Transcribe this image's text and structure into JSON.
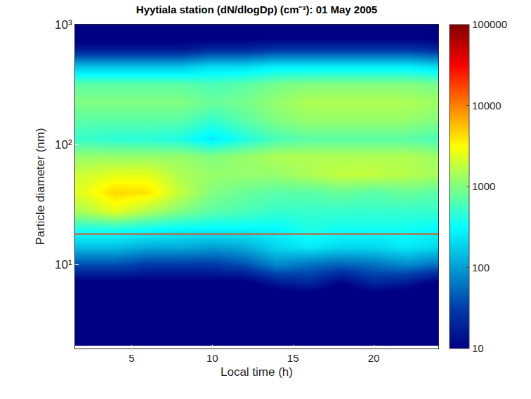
{
  "chart_data": {
    "type": "heatmap",
    "title": "Hyytiala station (dN/dlogDp) (cm⁻³): 01 May 2005",
    "x_label": "Local time (h)",
    "y_label": "Particle diameter (nm)",
    "log": "y",
    "grid": false,
    "color": "jet",
    "x": [
      2,
      4,
      6,
      8,
      10,
      12,
      14,
      16,
      18,
      20,
      22,
      24
    ],
    "y": [
      2.5,
      3.5,
      5,
      7,
      10,
      14,
      20,
      28,
      40,
      56,
      80,
      112,
      160,
      224,
      320,
      450,
      630,
      900
    ],
    "cells": [
      [
        5,
        5,
        5,
        5,
        5,
        5,
        5,
        5,
        5,
        5,
        5,
        5
      ],
      [
        5,
        5,
        5,
        5,
        5,
        5,
        5,
        5,
        5,
        5,
        5,
        5
      ],
      [
        5,
        5,
        5,
        5,
        5,
        5,
        5,
        5,
        5,
        5,
        5,
        5
      ],
      [
        8,
        8,
        8,
        8,
        8,
        8,
        15,
        20,
        10,
        20,
        15,
        8
      ],
      [
        40,
        40,
        30,
        30,
        30,
        40,
        80,
        60,
        50,
        60,
        80,
        60
      ],
      [
        150,
        150,
        120,
        120,
        100,
        120,
        200,
        250,
        200,
        200,
        250,
        200
      ],
      [
        400,
        400,
        350,
        300,
        300,
        300,
        300,
        400,
        350,
        350,
        350,
        300
      ],
      [
        1500,
        2500,
        1500,
        1000,
        700,
        600,
        500,
        500,
        500,
        500,
        500,
        500
      ],
      [
        2500,
        4500,
        4000,
        1800,
        1000,
        800,
        700,
        700,
        800,
        700,
        800,
        700
      ],
      [
        2000,
        2500,
        2500,
        1500,
        1200,
        1200,
        1200,
        1500,
        1800,
        1800,
        1600,
        1400
      ],
      [
        1200,
        1200,
        1200,
        1200,
        1000,
        1200,
        1500,
        1500,
        1500,
        1500,
        1500,
        1300
      ],
      [
        500,
        450,
        450,
        400,
        250,
        400,
        600,
        700,
        700,
        700,
        700,
        600
      ],
      [
        700,
        700,
        700,
        700,
        500,
        700,
        1000,
        1200,
        1200,
        1200,
        1200,
        1000
      ],
      [
        1000,
        1000,
        1000,
        1000,
        800,
        900,
        1200,
        1500,
        1500,
        1500,
        1500,
        1300
      ],
      [
        700,
        700,
        700,
        700,
        600,
        700,
        900,
        1000,
        1000,
        1000,
        1000,
        900
      ],
      [
        150,
        150,
        150,
        150,
        200,
        200,
        250,
        250,
        250,
        250,
        250,
        200
      ],
      [
        15,
        15,
        15,
        15,
        20,
        20,
        25,
        25,
        25,
        25,
        25,
        20
      ],
      [
        5,
        5,
        5,
        5,
        5,
        5,
        5,
        5,
        5,
        5,
        5,
        5
      ]
    ],
    "xlim": [
      1.5,
      24
    ],
    "ylim": [
      2,
      1000
    ],
    "xticks": [
      5,
      10,
      15,
      20
    ],
    "yticks": [
      {
        "value": 10,
        "label": "10¹"
      },
      {
        "value": 100,
        "label": "10²"
      },
      {
        "value": 1000,
        "label": "10³"
      }
    ],
    "colorbar": {
      "range": [
        10,
        100000
      ],
      "ticks": [
        10,
        100,
        1000,
        10000,
        100000
      ],
      "log": true
    },
    "reference_line": {
      "y": 18,
      "color": "#d4582a"
    }
  }
}
